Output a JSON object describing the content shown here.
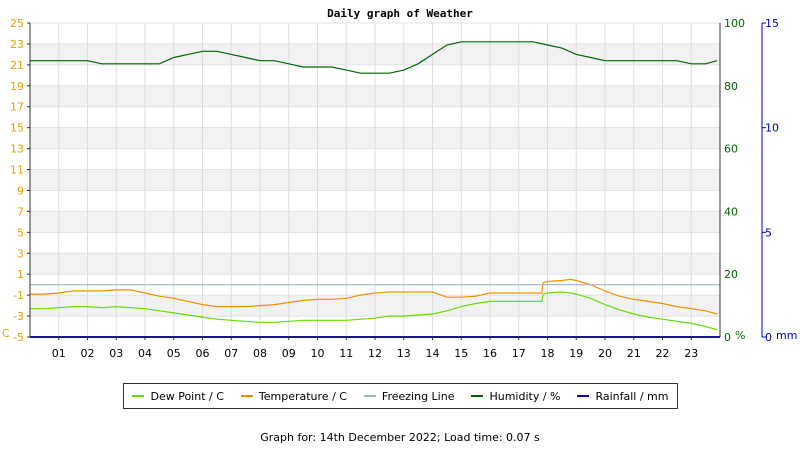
{
  "chart_data": {
    "type": "line",
    "title": "Daily graph of Weather",
    "left_axis": {
      "unit": "C",
      "ylim": [
        -5,
        25
      ],
      "ticks": [
        "25",
        "23",
        "21",
        "19",
        "17",
        "15",
        "13",
        "11",
        "9",
        "7",
        "5",
        "3",
        "1",
        "-1",
        "-3",
        "-5"
      ],
      "color": "#e6a000"
    },
    "right_axis_humidity": {
      "unit": "%",
      "ylim": [
        0,
        100
      ],
      "ticks": [
        "100",
        "80",
        "60",
        "40",
        "20",
        "0"
      ],
      "color": "#006400"
    },
    "right_axis_rain": {
      "unit": "mm",
      "ylim": [
        0,
        15
      ],
      "ticks": [
        "15",
        "10",
        "5",
        "0"
      ],
      "color": "#0000b4"
    },
    "x_ticks": [
      "01",
      "02",
      "03",
      "04",
      "05",
      "06",
      "07",
      "08",
      "09",
      "10",
      "11",
      "12",
      "13",
      "14",
      "15",
      "16",
      "17",
      "18",
      "19",
      "20",
      "21",
      "22",
      "23"
    ],
    "xlim": [
      0,
      24
    ],
    "series": [
      {
        "name": "Dew Point / C",
        "color": "#66dd00",
        "axis": "left",
        "x": [
          0.0,
          0.5,
          1.0,
          1.5,
          2.0,
          2.5,
          3.0,
          3.5,
          4.0,
          4.5,
          5.0,
          5.5,
          6.0,
          6.5,
          7.0,
          7.5,
          8.0,
          8.5,
          9.0,
          9.5,
          10.0,
          10.5,
          11.0,
          11.5,
          12.0,
          12.5,
          13.0,
          13.5,
          14.0,
          14.5,
          15.0,
          15.5,
          16.0,
          16.5,
          17.0,
          17.5,
          17.8,
          17.85,
          18.0,
          18.5,
          18.8,
          19.0,
          19.5,
          20.0,
          20.5,
          21.0,
          21.5,
          22.0,
          22.5,
          23.0,
          23.5,
          23.9
        ],
        "values": [
          -2.3,
          -2.3,
          -2.2,
          -2.1,
          -2.1,
          -2.2,
          -2.1,
          -2.2,
          -2.3,
          -2.5,
          -2.7,
          -2.9,
          -3.1,
          -3.3,
          -3.4,
          -3.5,
          -3.6,
          -3.6,
          -3.5,
          -3.4,
          -3.4,
          -3.4,
          -3.4,
          -3.3,
          -3.2,
          -3.0,
          -3.0,
          -2.9,
          -2.8,
          -2.5,
          -2.1,
          -1.8,
          -1.6,
          -1.6,
          -1.6,
          -1.6,
          -1.6,
          -0.9,
          -0.8,
          -0.7,
          -0.8,
          -0.9,
          -1.3,
          -1.9,
          -2.4,
          -2.8,
          -3.1,
          -3.3,
          -3.5,
          -3.7,
          -4.0,
          -4.3
        ]
      },
      {
        "name": "Temperature / C",
        "color": "#f09000",
        "axis": "left",
        "x": [
          0.0,
          0.5,
          1.0,
          1.5,
          2.0,
          2.5,
          3.0,
          3.5,
          4.0,
          4.5,
          5.0,
          5.5,
          6.0,
          6.5,
          7.0,
          7.5,
          8.0,
          8.5,
          9.0,
          9.5,
          10.0,
          10.5,
          11.0,
          11.5,
          12.0,
          12.5,
          13.0,
          13.5,
          14.0,
          14.5,
          15.0,
          15.5,
          16.0,
          16.5,
          17.0,
          17.5,
          17.8,
          17.85,
          18.0,
          18.5,
          18.8,
          19.0,
          19.5,
          20.0,
          20.5,
          21.0,
          21.5,
          22.0,
          22.5,
          23.0,
          23.5,
          23.9
        ],
        "values": [
          -0.9,
          -0.9,
          -0.8,
          -0.6,
          -0.6,
          -0.6,
          -0.5,
          -0.5,
          -0.8,
          -1.1,
          -1.3,
          -1.6,
          -1.9,
          -2.1,
          -2.1,
          -2.1,
          -2.0,
          -1.9,
          -1.7,
          -1.5,
          -1.4,
          -1.4,
          -1.3,
          -1.0,
          -0.8,
          -0.7,
          -0.7,
          -0.7,
          -0.7,
          -1.2,
          -1.2,
          -1.1,
          -0.8,
          -0.8,
          -0.8,
          -0.8,
          -0.8,
          0.2,
          0.3,
          0.4,
          0.5,
          0.4,
          0.0,
          -0.6,
          -1.1,
          -1.4,
          -1.6,
          -1.8,
          -2.1,
          -2.3,
          -2.5,
          -2.8
        ]
      },
      {
        "name": "Freezing Line",
        "color": "#9ab6c8",
        "axis": "left",
        "x": [
          0,
          24
        ],
        "values": [
          0,
          0
        ]
      },
      {
        "name": "Humidity / %",
        "color": "#006400",
        "axis": "right_humidity",
        "x": [
          0.0,
          0.5,
          1.0,
          1.5,
          2.0,
          2.5,
          3.0,
          3.5,
          4.0,
          4.5,
          5.0,
          5.5,
          6.0,
          6.5,
          7.0,
          7.5,
          8.0,
          8.5,
          9.0,
          9.5,
          10.0,
          10.5,
          11.0,
          11.5,
          12.0,
          12.5,
          13.0,
          13.5,
          14.0,
          14.5,
          15.0,
          15.5,
          16.0,
          16.5,
          17.0,
          17.5,
          18.0,
          18.5,
          19.0,
          19.5,
          20.0,
          20.5,
          21.0,
          21.5,
          22.0,
          22.5,
          23.0,
          23.5,
          23.9
        ],
        "values": [
          88,
          88,
          88,
          88,
          88,
          87,
          87,
          87,
          87,
          87,
          89,
          90,
          91,
          91,
          90,
          89,
          88,
          88,
          87,
          86,
          86,
          86,
          85,
          84,
          84,
          84,
          85,
          87,
          90,
          93,
          94,
          94,
          94,
          94,
          94,
          94,
          93,
          92,
          90,
          89,
          88,
          88,
          88,
          88,
          88,
          88,
          87,
          87,
          88
        ]
      },
      {
        "name": "Rainfall / mm",
        "color": "#0000c8",
        "axis": "right_rain",
        "x": [
          0,
          24
        ],
        "values": [
          0,
          0
        ]
      }
    ],
    "grid": true,
    "legend_placement": "bottom"
  },
  "legend": {
    "items": [
      {
        "label": "Dew Point / C",
        "color": "#66dd00"
      },
      {
        "label": "Temperature / C",
        "color": "#f09000"
      },
      {
        "label": "Freezing Line",
        "color": "#9ab6c8"
      },
      {
        "label": "Humidity / %",
        "color": "#006400"
      },
      {
        "label": "Rainfall / mm",
        "color": "#0000c8"
      }
    ]
  },
  "footer": {
    "text": "Graph for: 14th December 2022; Load time: 0.07 s"
  }
}
